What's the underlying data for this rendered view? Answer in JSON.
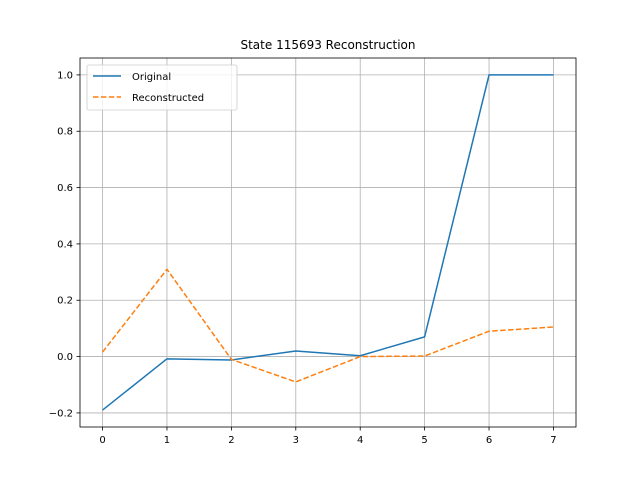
{
  "chart_data": {
    "type": "line",
    "title": "State 115693 Reconstruction",
    "xlabel": "",
    "ylabel": "",
    "x": [
      0,
      1,
      2,
      3,
      4,
      5,
      6,
      7
    ],
    "xlim": [
      -0.35,
      7.35
    ],
    "ylim": [
      -0.25,
      1.06
    ],
    "xticks": [
      "0",
      "1",
      "2",
      "3",
      "4",
      "5",
      "6",
      "7"
    ],
    "yticks": [
      "−0.2",
      "0.0",
      "0.2",
      "0.4",
      "0.6",
      "0.8",
      "1.0"
    ],
    "ytick_values": [
      -0.2,
      0.0,
      0.2,
      0.4,
      0.6,
      0.8,
      1.0
    ],
    "grid": true,
    "legend_position": "top-left",
    "series": [
      {
        "name": "Original",
        "values": [
          -0.19,
          -0.008,
          -0.012,
          0.02,
          0.003,
          0.07,
          1.0,
          1.0
        ],
        "color": "#1f77b4",
        "style": "solid"
      },
      {
        "name": "Reconstructed",
        "values": [
          0.016,
          0.31,
          -0.01,
          -0.09,
          0.0,
          0.002,
          0.09,
          0.105
        ],
        "color": "#ff7f0e",
        "style": "dashed"
      }
    ]
  }
}
